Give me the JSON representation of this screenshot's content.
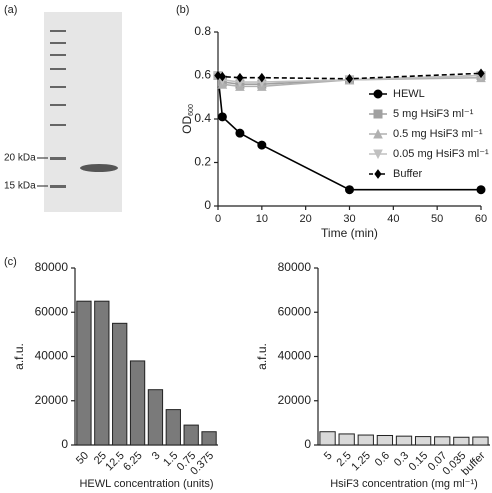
{
  "panels": [
    "(a)",
    "(b)",
    "(c)"
  ],
  "gel": {
    "markers": [
      "20 kDa",
      "15 kDa"
    ]
  },
  "chart_data": [
    {
      "type": "line",
      "xlabel": "Time (min)",
      "ylabel": "OD",
      "ylabel_sub": "600",
      "x": [
        0,
        1,
        5,
        10,
        30,
        60
      ],
      "xlim": [
        0,
        60
      ],
      "xticks": [
        0,
        10,
        20,
        30,
        40,
        50,
        60
      ],
      "ylim": [
        0,
        0.8
      ],
      "yticks": [
        0,
        0.2,
        0.4,
        0.6,
        0.8
      ],
      "legend": "center right",
      "series": [
        {
          "name": "HEWL",
          "color": "#000000",
          "marker": "circle",
          "values": [
            0.6,
            0.41,
            0.335,
            0.28,
            0.075,
            0.075
          ]
        },
        {
          "name": "5 mg HsiF3 ml⁻¹",
          "color": "#a0a0a0",
          "marker": "square",
          "values": [
            0.6,
            0.57,
            0.56,
            0.56,
            0.58,
            0.6
          ]
        },
        {
          "name": "0.5 mg HsiF3 ml⁻¹",
          "color": "#b0b0b0",
          "marker": "triangle-up",
          "values": [
            0.6,
            0.56,
            0.55,
            0.55,
            0.58,
            0.59
          ]
        },
        {
          "name": "0.05 mg HsiF3 ml⁻¹",
          "color": "#c0c0c0",
          "marker": "triangle-down",
          "values": [
            0.6,
            0.58,
            0.57,
            0.57,
            0.58,
            0.6
          ]
        },
        {
          "name": "Buffer",
          "color": "#000000",
          "marker": "diamond",
          "dash": true,
          "values": [
            0.6,
            0.595,
            0.59,
            0.59,
            0.585,
            0.61
          ]
        }
      ]
    },
    {
      "type": "bar",
      "xlabel": "HEWL concentration (units)",
      "ylabel": "a.f.u.",
      "color": "#7a7a7a",
      "categories": [
        "50",
        "25",
        "12.5",
        "6.25",
        "3",
        "1.5",
        "0.75",
        "0.375"
      ],
      "values": [
        65000,
        65000,
        55000,
        38000,
        25000,
        16000,
        9000,
        6000
      ],
      "ylim": [
        0,
        80000
      ],
      "yticks": [
        0,
        20000,
        40000,
        60000,
        80000
      ]
    },
    {
      "type": "bar",
      "xlabel": "HsiF3 concentration (mg ml⁻¹)",
      "ylabel": "a.f.u.",
      "color": "#d9d9d9",
      "categories": [
        "5",
        "2.5",
        "1.25",
        "0.6",
        "0.3",
        "0.15",
        "0.07",
        "0.035",
        "buffer"
      ],
      "values": [
        6000,
        5000,
        4500,
        4300,
        4000,
        3800,
        3700,
        3500,
        3600
      ],
      "ylim": [
        0,
        80000
      ],
      "yticks": [
        0,
        20000,
        40000,
        60000,
        80000
      ]
    }
  ]
}
